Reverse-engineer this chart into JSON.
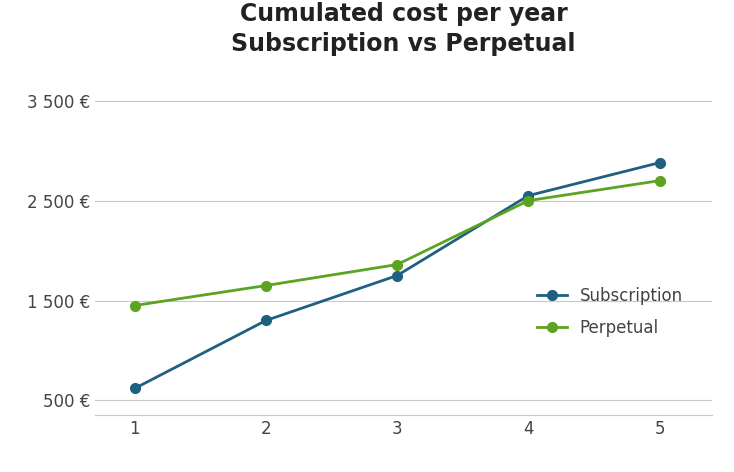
{
  "title_line1": "Cumulated cost per year",
  "title_line2": "Subscription vs Perpetual",
  "x": [
    1,
    2,
    3,
    4,
    5
  ],
  "subscription": [
    620,
    1300,
    1750,
    2550,
    2880
  ],
  "perpetual": [
    1450,
    1650,
    1860,
    2500,
    2700
  ],
  "subscription_color": "#1F6080",
  "perpetual_color": "#5BA320",
  "yticks": [
    500,
    1500,
    2500,
    3500
  ],
  "ytick_labels": [
    "500 €",
    "1 500 €",
    "2 500 €",
    "3 500 €"
  ],
  "ylim": [
    350,
    3800
  ],
  "xlim": [
    0.7,
    5.4
  ],
  "legend_subscription": "Subscription",
  "legend_perpetual": "Perpetual",
  "background_color": "#ffffff",
  "grid_color": "#c8c8c8",
  "marker": "o",
  "linewidth": 2.0,
  "markersize": 7,
  "title_fontsize": 17,
  "tick_fontsize": 12
}
